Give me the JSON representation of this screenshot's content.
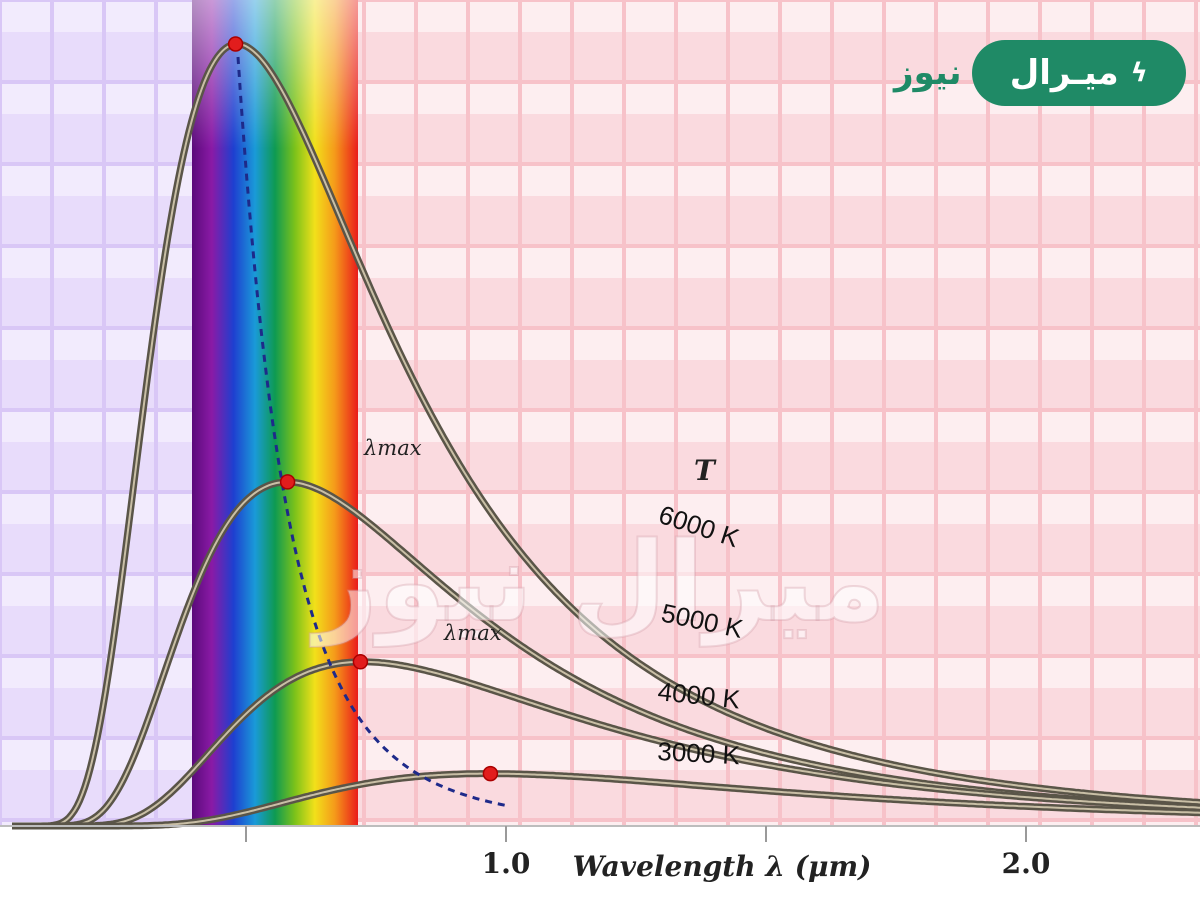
{
  "brand": {
    "word_outside": "نيوز",
    "word_inside": "ميـرال",
    "icon": "lightning-bolt-icon",
    "color": "#1f8a66"
  },
  "watermark": "ميرال نيوز",
  "chart_data": {
    "type": "line",
    "title": "",
    "xlabel": "Wavelength λ (μm)",
    "ylabel": "",
    "xlim": [
      0.0,
      2.7
    ],
    "ylim": [
      0,
      1.05
    ],
    "x_ticks": [
      0.5,
      1.0,
      1.5,
      2.0
    ],
    "x_tick_labels": [
      "",
      "1.0",
      "",
      "2.0"
    ],
    "legend_header": "T",
    "peak_label": "λmax",
    "visible_spectrum_um": [
      0.38,
      0.7
    ],
    "peak_curve_style": "dashed navy",
    "series": [
      {
        "name": "6000 K",
        "temperature": 6000,
        "peak_x": 0.48,
        "peak_y": 1.0
      },
      {
        "name": "5000 K",
        "temperature": 5000,
        "peak_x": 0.58,
        "peak_y": 0.44
      },
      {
        "name": "4000 K",
        "temperature": 4000,
        "peak_x": 0.72,
        "peak_y": 0.21
      },
      {
        "name": "3000 K",
        "temperature": 3000,
        "peak_x": 0.97,
        "peak_y": 0.067
      }
    ],
    "colors": {
      "uv_region": "#c9b3f0",
      "ir_region": "#f7c9cf",
      "curve": "#5a5548",
      "peak_marker": "#e21d1d",
      "wien_line": "#1e2a8a"
    }
  }
}
